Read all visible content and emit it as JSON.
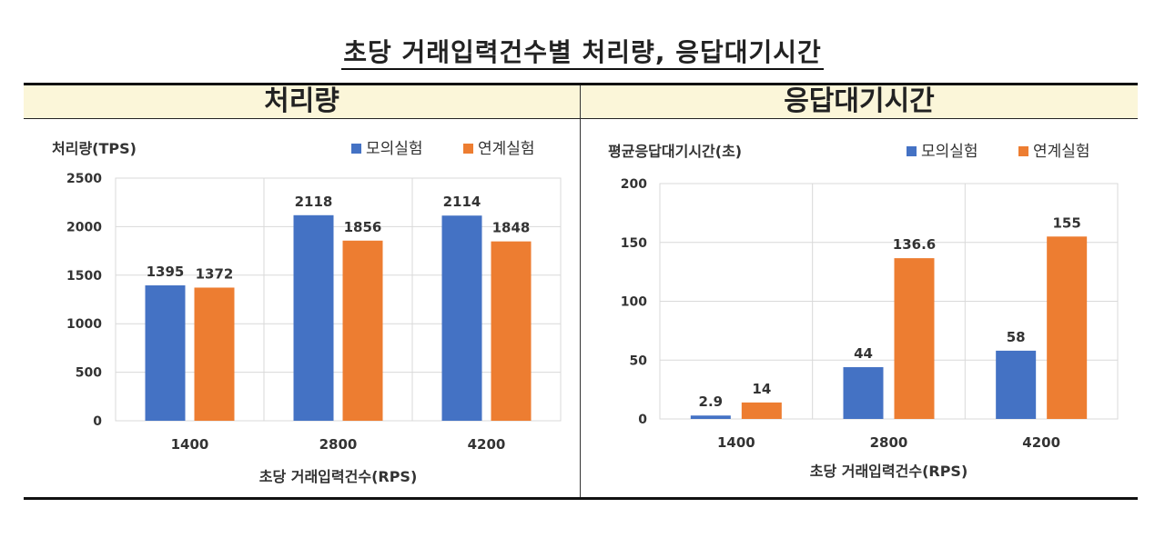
{
  "page": {
    "title": "초당 거래입력건수별 처리량, 응답대기시간"
  },
  "colors": {
    "series_blue": "#4472c4",
    "series_orange": "#ed7d31",
    "header_band": "#fbf6d9"
  },
  "chart_data": [
    {
      "type": "bar",
      "title": "처리량",
      "ylabel": "처리량(TPS)",
      "xlabel": "초당 거래입력건수(RPS)",
      "categories": [
        "1400",
        "2800",
        "4200"
      ],
      "series": [
        {
          "name": "모의실험",
          "color": "#4472c4",
          "values": [
            1395,
            2118,
            2114
          ]
        },
        {
          "name": "연계실험",
          "color": "#ed7d31",
          "values": [
            1372,
            1856,
            1848
          ]
        }
      ],
      "ylim": [
        0,
        2500
      ],
      "yticks": [
        "0",
        "500",
        "1000",
        "1500",
        "2000",
        "2500"
      ],
      "data_labels": [
        [
          "1395",
          "2118",
          "2114"
        ],
        [
          "1372",
          "1856",
          "1848"
        ]
      ],
      "grid": true,
      "legend": "top-right"
    },
    {
      "type": "bar",
      "title": "응답대기시간",
      "ylabel": "평균응답대기시간(초)",
      "xlabel": "초당 거래입력건수(RPS)",
      "categories": [
        "1400",
        "2800",
        "4200"
      ],
      "series": [
        {
          "name": "모의실험",
          "color": "#4472c4",
          "values": [
            2.9,
            44,
            58
          ]
        },
        {
          "name": "연계실험",
          "color": "#ed7d31",
          "values": [
            14,
            136.6,
            155
          ]
        }
      ],
      "ylim": [
        0,
        200
      ],
      "yticks": [
        "0",
        "50",
        "100",
        "150",
        "200"
      ],
      "data_labels": [
        [
          "2.9",
          "44",
          "58"
        ],
        [
          "14",
          "136.6",
          "155"
        ]
      ],
      "grid": true,
      "legend": "top-right"
    }
  ]
}
